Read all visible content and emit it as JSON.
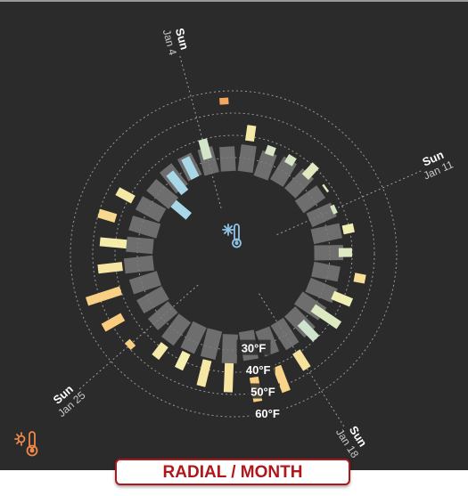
{
  "badge_label": "RADIAL / MONTH",
  "center_icon": "snowflake-thermometer-icon",
  "corner_icon": "sun-thermometer-icon",
  "colors": {
    "background": "#2b2b2b",
    "range_bar": "#808080",
    "cold": "#a8d8e8",
    "mid": "#f4f0b0",
    "warm": "#f08a4b",
    "badge": "#b0171b"
  },
  "chart_data": {
    "type": "radial-bar",
    "title": "",
    "unit": "°F",
    "r_scale": [
      10,
      70
    ],
    "rings": [
      {
        "value": 30,
        "label": "30°F"
      },
      {
        "value": 40,
        "label": "40°F"
      },
      {
        "value": 50,
        "label": "50°F"
      },
      {
        "value": 60,
        "label": "60°F"
      }
    ],
    "week_markers": [
      {
        "day": "Sun",
        "date": "Jan 4",
        "day_index": 3
      },
      {
        "day": "Sun",
        "date": "Jan 11",
        "day_index": 10
      },
      {
        "day": "Sun",
        "date": "Jan 18",
        "day_index": 17
      },
      {
        "day": "Sun",
        "date": "Jan 25",
        "day_index": 24
      }
    ],
    "days": [
      {
        "day": 1,
        "low": 22,
        "high": 35,
        "recorded_low": 13,
        "recorded_high": 22
      },
      {
        "day": 2,
        "low": 24,
        "high": 36,
        "recorded_low": 22,
        "recorded_high": 33
      },
      {
        "day": 3,
        "low": 25,
        "high": 36,
        "recorded_low": 25,
        "recorded_high": 35
      },
      {
        "day": 4,
        "low": 24,
        "high": 36,
        "recorded_low": 31,
        "recorded_high": 40
      },
      {
        "day": 5,
        "low": 24,
        "high": 35,
        "recorded_low": 54,
        "recorded_high": 57
      },
      {
        "day": 6,
        "low": 24,
        "high": 36,
        "recorded_low": 38,
        "recorded_high": 45
      },
      {
        "day": 7,
        "low": 23,
        "high": 35,
        "recorded_low": 34,
        "recorded_high": 38
      },
      {
        "day": 8,
        "low": 24,
        "high": 36,
        "recorded_low": 34,
        "recorded_high": 38
      },
      {
        "day": 9,
        "low": 24,
        "high": 36,
        "recorded_low": 34,
        "recorded_high": 41
      },
      {
        "day": 10,
        "low": 23,
        "high": 35,
        "recorded_low": 37,
        "recorded_high": 38
      },
      {
        "day": 11,
        "low": 24,
        "high": 36,
        "recorded_low": 35,
        "recorded_high": 37
      },
      {
        "day": 12,
        "low": 23,
        "high": 36,
        "recorded_low": 37,
        "recorded_high": 42
      },
      {
        "day": 13,
        "low": 23,
        "high": 36,
        "recorded_low": 34,
        "recorded_high": 40
      },
      {
        "day": 14,
        "low": 23,
        "high": 35,
        "recorded_low": 42,
        "recorded_high": 47
      },
      {
        "day": 15,
        "low": 23,
        "high": 36,
        "recorded_low": 35,
        "recorded_high": 44
      },
      {
        "day": 16,
        "low": 22,
        "high": 35,
        "recorded_low": 30,
        "recorded_high": 44
      },
      {
        "day": 17,
        "low": 23,
        "high": 36,
        "recorded_low": 30,
        "recorded_high": 40
      },
      {
        "day": 18,
        "low": 23,
        "high": 36,
        "recorded_low": 39,
        "recorded_high": 48
      },
      {
        "day": 19,
        "low": 23,
        "high": 35,
        "recorded_low": 41,
        "recorded_high": 53
      },
      {
        "day": 20,
        "low": 22,
        "high": 35,
        "recorded_low": 43,
        "recorded_high": 54
      },
      {
        "day": 21,
        "low": 23,
        "high": 36,
        "recorded_low": 36,
        "recorded_high": 49
      },
      {
        "day": 22,
        "low": 22,
        "high": 35,
        "recorded_low": 36,
        "recorded_high": 48
      },
      {
        "day": 23,
        "low": 22,
        "high": 35,
        "recorded_low": 36,
        "recorded_high": 44
      },
      {
        "day": 24,
        "low": 23,
        "high": 36,
        "recorded_low": 38,
        "recorded_high": 45
      },
      {
        "day": 25,
        "low": 23,
        "high": 35,
        "recorded_low": 47,
        "recorded_high": 50
      },
      {
        "day": 26,
        "low": 22,
        "high": 35,
        "recorded_low": 44,
        "recorded_high": 54
      },
      {
        "day": 27,
        "low": 22,
        "high": 35,
        "recorded_low": 40,
        "recorded_high": 56
      },
      {
        "day": 28,
        "low": 23,
        "high": 36,
        "recorded_low": 37,
        "recorded_high": 48
      },
      {
        "day": 29,
        "low": 23,
        "high": 35,
        "recorded_low": 35,
        "recorded_high": 47
      },
      {
        "day": 30,
        "low": 22,
        "high": 35,
        "recorded_low": 42,
        "recorded_high": 50
      },
      {
        "day": 31,
        "low": 23,
        "high": 35,
        "recorded_low": 38,
        "recorded_high": 46
      }
    ]
  }
}
